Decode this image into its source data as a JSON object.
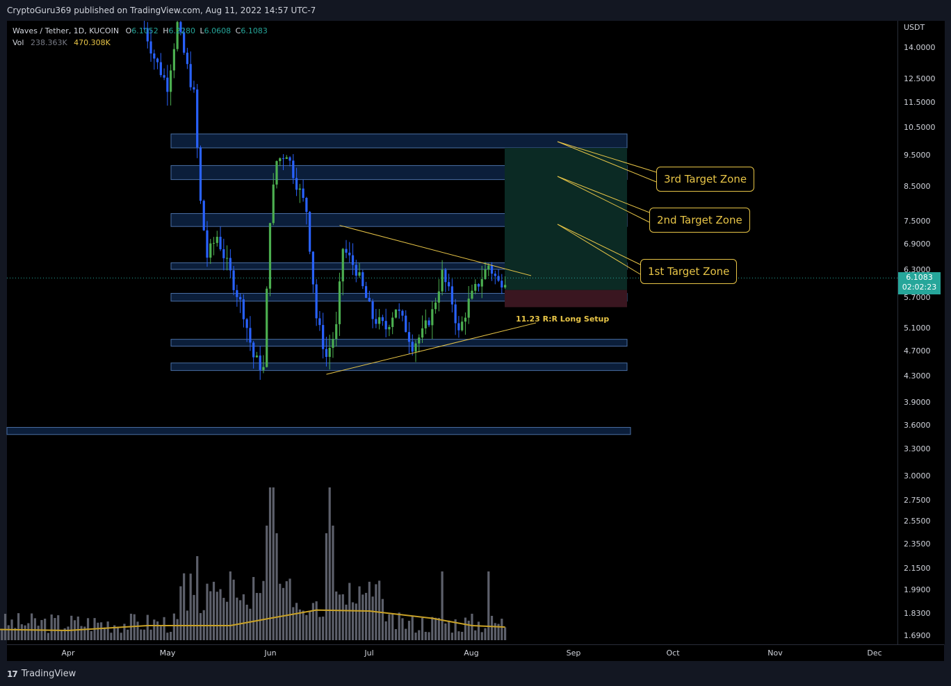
{
  "header": {
    "published_text": "CryptoGuru369 published on TradingView.com, Aug 11, 2022 14:57 UTC-7"
  },
  "legend": {
    "symbol": "Waves / Tether, 1D, KUCOIN",
    "open_label": "O",
    "open": "6.1052",
    "high_label": "H",
    "high": "6.2280",
    "low_label": "L",
    "low": "6.0608",
    "close_label": "C",
    "close": "6.1083",
    "vol_label": "Vol",
    "vol_value": "238.363K",
    "vol_ma": "470.308K"
  },
  "price_axis": {
    "currency": "USDT",
    "ticks": [
      "14.0000",
      "12.5000",
      "11.5000",
      "10.5000",
      "9.5000",
      "8.5000",
      "7.5000",
      "6.9000",
      "6.3000",
      "5.7000",
      "5.1000",
      "4.7000",
      "4.3000",
      "3.9000",
      "3.6000",
      "3.3000",
      "3.0000",
      "2.7500",
      "2.5500",
      "2.3500",
      "2.1500",
      "1.9900",
      "1.8300",
      "1.6900"
    ],
    "current_price": "6.1083",
    "countdown": "02:02:23"
  },
  "time_axis": {
    "months": [
      "Apr",
      "May",
      "Jun",
      "Jul",
      "Aug",
      "Sep",
      "Oct",
      "Nov",
      "Dec"
    ]
  },
  "annotations": {
    "zone1": "1st Target Zone",
    "zone2": "2nd Target Zone",
    "zone3": "3rd Target Zone",
    "rr_setup": "11.23 R:R Long Setup"
  },
  "colors": {
    "bull": "#26a69a",
    "candle_green": "#4caf50",
    "bear": "#2962ff",
    "zone_fill": "#0d2344",
    "zone_border": "#4a6fa5",
    "annotation": "#e8c547",
    "volume_bar": "#5d606b",
    "volume_ma": "#c9a227",
    "profit_box": "#0b2a24",
    "loss_box": "#3a1620"
  },
  "branding": {
    "logo_text": "TradingView",
    "logo_mark": "17"
  },
  "chart_data": {
    "type": "candlestick",
    "symbol": "WAVES/USDT",
    "interval": "1D",
    "exchange": "KUCOIN",
    "price_scale": "log",
    "x_range": [
      "2022-03-11",
      "2022-12-15"
    ],
    "y_range": [
      1.69,
      15.2
    ],
    "current_close": 6.1083,
    "zones": [
      {
        "from": 9.75,
        "to": 10.25
      },
      {
        "from": 8.7,
        "to": 9.15
      },
      {
        "from": 7.35,
        "to": 7.7
      },
      {
        "from": 6.3,
        "to": 6.45
      },
      {
        "from": 5.62,
        "to": 5.78
      },
      {
        "from": 4.78,
        "to": 4.9
      },
      {
        "from": 4.38,
        "to": 4.5
      },
      {
        "from": 3.48,
        "to": 3.57
      }
    ],
    "long_position": {
      "entry": 5.85,
      "target": 9.75,
      "stop": 5.5,
      "risk_reward": 11.23
    },
    "triangle": {
      "upper": [
        {
          "date": "2022-06-22",
          "price": 7.38
        },
        {
          "date": "2022-08-14",
          "price": 6.2
        }
      ],
      "lower": [
        {
          "date": "2022-06-18",
          "price": 4.32
        },
        {
          "date": "2022-08-16",
          "price": 5.3
        }
      ]
    },
    "volume_ma_approx": [
      {
        "date": "2022-03-11",
        "value": 0.22
      },
      {
        "date": "2022-04-01",
        "value": 0.2
      },
      {
        "date": "2022-04-25",
        "value": 0.3
      },
      {
        "date": "2022-05-20",
        "value": 0.3
      },
      {
        "date": "2022-06-01",
        "value": 0.45
      },
      {
        "date": "2022-06-15",
        "value": 0.62
      },
      {
        "date": "2022-07-01",
        "value": 0.6
      },
      {
        "date": "2022-07-20",
        "value": 0.45
      },
      {
        "date": "2022-08-01",
        "value": 0.3
      },
      {
        "date": "2022-08-11",
        "value": 0.27
      }
    ]
  }
}
